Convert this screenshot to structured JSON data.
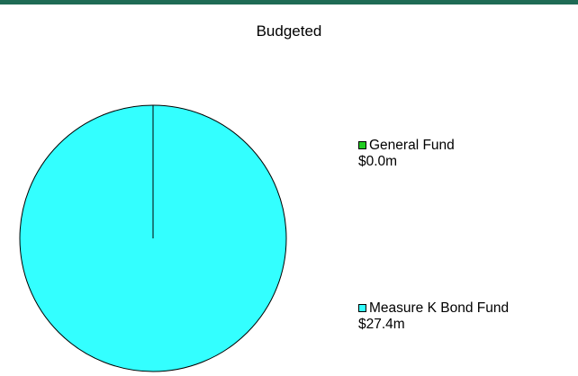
{
  "chart_data": {
    "type": "pie",
    "title": "Budgeted",
    "categories": [
      "General Fund",
      "Measure K Bond Fund"
    ],
    "values": [
      0.0,
      27.4
    ],
    "value_labels": [
      "$0.0m",
      "$27.4m"
    ],
    "colors": [
      "#22cc22",
      "#33ffff"
    ],
    "legend_placement": "right"
  }
}
